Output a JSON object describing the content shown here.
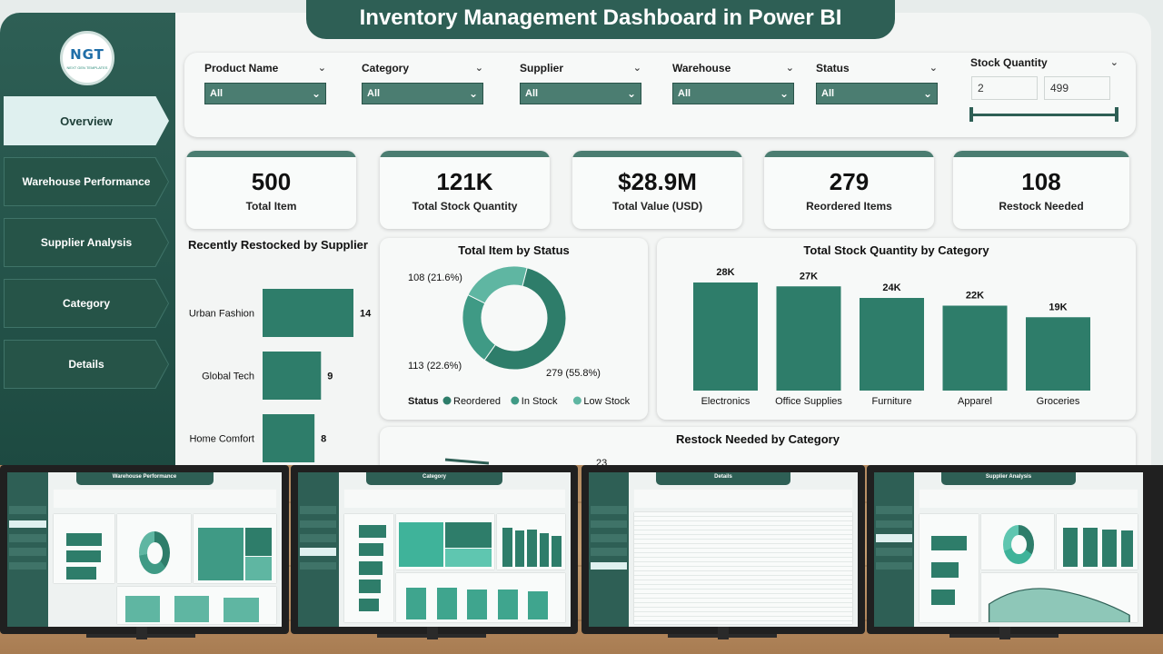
{
  "title": "Inventory Management Dashboard in Power BI",
  "logo": {
    "main": "NGT",
    "sub": "NEXT GEN TEMPLATES"
  },
  "nav": [
    {
      "label": "Overview",
      "active": true
    },
    {
      "label": "Warehouse Performance",
      "active": false
    },
    {
      "label": "Supplier Analysis",
      "active": false
    },
    {
      "label": "Category",
      "active": false
    },
    {
      "label": "Details",
      "active": false
    }
  ],
  "filters": [
    {
      "label": "Product Name",
      "value": "All"
    },
    {
      "label": "Category",
      "value": "All"
    },
    {
      "label": "Supplier",
      "value": "All"
    },
    {
      "label": "Warehouse",
      "value": "All"
    },
    {
      "label": "Status",
      "value": "All"
    }
  ],
  "stock_filter": {
    "label": "Stock Quantity",
    "min": "2",
    "max": "499"
  },
  "kpis": [
    {
      "value": "500",
      "label": "Total Item"
    },
    {
      "value": "121K",
      "label": "Total Stock Quantity"
    },
    {
      "value": "$28.9M",
      "label": "Total Value (USD)"
    },
    {
      "value": "279",
      "label": "Reordered Items"
    },
    {
      "value": "108",
      "label": "Restock Needed"
    }
  ],
  "chart_data": [
    {
      "type": "bar",
      "orientation": "horizontal",
      "title": "Recently Restocked by Supplier",
      "categories": [
        "Urban Fashion",
        "Global Tech",
        "Home Comfort"
      ],
      "values": [
        14,
        9,
        8
      ],
      "color": "#2e7d6a"
    },
    {
      "type": "pie",
      "subtype": "donut",
      "title": "Total Item by Status",
      "legend_title": "Status",
      "legend_position": "bottom",
      "slices": [
        {
          "name": "Reordered",
          "value": 279,
          "label": "279 (55.8%)",
          "color": "#2e7d6a"
        },
        {
          "name": "In Stock",
          "value": 113,
          "label": "113 (22.6%)",
          "color": "#3f9a85"
        },
        {
          "name": "Low Stock",
          "value": 108,
          "label": "108 (21.6%)",
          "color": "#5fb6a2"
        }
      ]
    },
    {
      "type": "bar",
      "title": "Total Stock Quantity by Category",
      "categories": [
        "Electronics",
        "Office Supplies",
        "Furniture",
        "Apparel",
        "Groceries"
      ],
      "values": [
        28000,
        27000,
        24000,
        22000,
        19000
      ],
      "labels": [
        "28K",
        "27K",
        "24K",
        "22K",
        "19K"
      ],
      "color": "#2e7d6a"
    },
    {
      "type": "line",
      "title": "Restock Needed by Category",
      "visible_labels": [
        "23"
      ]
    }
  ],
  "thumbnails": [
    {
      "title": "Warehouse Performance"
    },
    {
      "title": "Category"
    },
    {
      "title": "Details"
    },
    {
      "title": "Supplier Analysis"
    }
  ],
  "colors": {
    "primary": "#2e5f55",
    "bar": "#2e7d6a",
    "accent_light": "#dff0ef"
  }
}
